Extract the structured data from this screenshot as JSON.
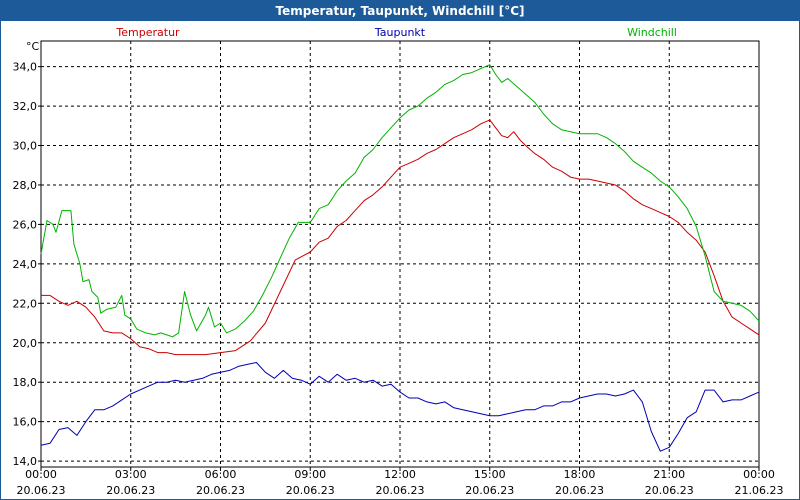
{
  "window": {
    "title": "Temperatur, Taupunkt, Windchill [°C]"
  },
  "chart_data": {
    "type": "line",
    "title": "Temperatur, Taupunkt, Windchill [°C]",
    "ylabel": "°C",
    "xlabel": "",
    "ylim": [
      13.7,
      35.3
    ],
    "xlim": [
      0,
      24
    ],
    "grid": true,
    "yticks": [
      14,
      16,
      18,
      20,
      22,
      24,
      26,
      28,
      30,
      32,
      34
    ],
    "ytick_labels": [
      "14,0",
      "16,0",
      "18,0",
      "20,0",
      "22,0",
      "24,0",
      "26,0",
      "28,0",
      "30,0",
      "32,0",
      "34,0"
    ],
    "xticks": [
      {
        "x": 0,
        "time": "00:00",
        "date": "20.06.23"
      },
      {
        "x": 3,
        "time": "03:00",
        "date": "20.06.23"
      },
      {
        "x": 6,
        "time": "06:00",
        "date": "20.06.23"
      },
      {
        "x": 9,
        "time": "09:00",
        "date": "20.06.23"
      },
      {
        "x": 12,
        "time": "12:00",
        "date": "20.06.23"
      },
      {
        "x": 15,
        "time": "15:00",
        "date": "20.06.23"
      },
      {
        "x": 18,
        "time": "18:00",
        "date": "20.06.23"
      },
      {
        "x": 21,
        "time": "21:00",
        "date": "20.06.23"
      },
      {
        "x": 24,
        "time": "00:00",
        "date": "21.06.23"
      }
    ],
    "series": [
      {
        "name": "Temperatur",
        "color": "#cc0000",
        "points": [
          [
            0,
            22.4
          ],
          [
            0.3,
            22.4
          ],
          [
            0.6,
            22.1
          ],
          [
            0.9,
            21.9
          ],
          [
            1.2,
            22.1
          ],
          [
            1.5,
            21.8
          ],
          [
            1.8,
            21.3
          ],
          [
            2.1,
            20.6
          ],
          [
            2.4,
            20.5
          ],
          [
            2.7,
            20.5
          ],
          [
            3.0,
            20.2
          ],
          [
            3.3,
            19.8
          ],
          [
            3.6,
            19.7
          ],
          [
            3.9,
            19.5
          ],
          [
            4.2,
            19.5
          ],
          [
            4.5,
            19.4
          ],
          [
            5.0,
            19.4
          ],
          [
            5.5,
            19.4
          ],
          [
            6.0,
            19.5
          ],
          [
            6.5,
            19.6
          ],
          [
            7.0,
            20.1
          ],
          [
            7.5,
            21.0
          ],
          [
            8.0,
            22.6
          ],
          [
            8.5,
            24.2
          ],
          [
            9.0,
            24.6
          ],
          [
            9.3,
            25.1
          ],
          [
            9.6,
            25.3
          ],
          [
            9.9,
            25.9
          ],
          [
            10.2,
            26.2
          ],
          [
            10.5,
            26.7
          ],
          [
            10.8,
            27.2
          ],
          [
            11.1,
            27.5
          ],
          [
            11.4,
            27.9
          ],
          [
            11.7,
            28.4
          ],
          [
            12.0,
            28.9
          ],
          [
            12.3,
            29.1
          ],
          [
            12.6,
            29.3
          ],
          [
            12.9,
            29.6
          ],
          [
            13.2,
            29.8
          ],
          [
            13.5,
            30.1
          ],
          [
            13.8,
            30.4
          ],
          [
            14.1,
            30.6
          ],
          [
            14.4,
            30.8
          ],
          [
            14.7,
            31.1
          ],
          [
            15.0,
            31.3
          ],
          [
            15.2,
            30.9
          ],
          [
            15.4,
            30.5
          ],
          [
            15.6,
            30.4
          ],
          [
            15.8,
            30.7
          ],
          [
            16.0,
            30.3
          ],
          [
            16.2,
            30.0
          ],
          [
            16.5,
            29.6
          ],
          [
            16.8,
            29.3
          ],
          [
            17.1,
            28.9
          ],
          [
            17.4,
            28.7
          ],
          [
            17.7,
            28.4
          ],
          [
            18.0,
            28.3
          ],
          [
            18.3,
            28.3
          ],
          [
            18.6,
            28.2
          ],
          [
            18.9,
            28.1
          ],
          [
            19.2,
            28.0
          ],
          [
            19.5,
            27.7
          ],
          [
            19.8,
            27.3
          ],
          [
            20.1,
            27.0
          ],
          [
            20.4,
            26.8
          ],
          [
            20.7,
            26.6
          ],
          [
            21.0,
            26.4
          ],
          [
            21.3,
            26.1
          ],
          [
            21.6,
            25.6
          ],
          [
            21.9,
            25.2
          ],
          [
            22.2,
            24.6
          ],
          [
            22.5,
            23.4
          ],
          [
            22.8,
            22.1
          ],
          [
            23.1,
            21.3
          ],
          [
            23.4,
            21.0
          ],
          [
            23.7,
            20.7
          ],
          [
            24.0,
            20.4
          ]
        ]
      },
      {
        "name": "Taupunkt",
        "color": "#0000b4",
        "points": [
          [
            0,
            14.8
          ],
          [
            0.3,
            14.9
          ],
          [
            0.6,
            15.6
          ],
          [
            0.9,
            15.7
          ],
          [
            1.2,
            15.3
          ],
          [
            1.5,
            16.0
          ],
          [
            1.8,
            16.6
          ],
          [
            2.1,
            16.6
          ],
          [
            2.4,
            16.8
          ],
          [
            2.7,
            17.1
          ],
          [
            3.0,
            17.4
          ],
          [
            3.3,
            17.6
          ],
          [
            3.6,
            17.8
          ],
          [
            3.9,
            18.0
          ],
          [
            4.2,
            18.0
          ],
          [
            4.5,
            18.1
          ],
          [
            4.8,
            18.0
          ],
          [
            5.1,
            18.1
          ],
          [
            5.4,
            18.2
          ],
          [
            5.7,
            18.4
          ],
          [
            6.0,
            18.5
          ],
          [
            6.3,
            18.6
          ],
          [
            6.6,
            18.8
          ],
          [
            6.9,
            18.9
          ],
          [
            7.2,
            19.0
          ],
          [
            7.5,
            18.5
          ],
          [
            7.8,
            18.2
          ],
          [
            8.1,
            18.6
          ],
          [
            8.4,
            18.2
          ],
          [
            8.7,
            18.1
          ],
          [
            9.0,
            17.9
          ],
          [
            9.3,
            18.3
          ],
          [
            9.6,
            18.0
          ],
          [
            9.9,
            18.4
          ],
          [
            10.2,
            18.1
          ],
          [
            10.5,
            18.2
          ],
          [
            10.8,
            18.0
          ],
          [
            11.1,
            18.1
          ],
          [
            11.4,
            17.8
          ],
          [
            11.7,
            17.9
          ],
          [
            12.0,
            17.5
          ],
          [
            12.3,
            17.2
          ],
          [
            12.6,
            17.2
          ],
          [
            12.9,
            17.0
          ],
          [
            13.2,
            16.9
          ],
          [
            13.5,
            17.0
          ],
          [
            13.8,
            16.7
          ],
          [
            14.1,
            16.6
          ],
          [
            14.4,
            16.5
          ],
          [
            14.7,
            16.4
          ],
          [
            15.0,
            16.3
          ],
          [
            15.3,
            16.3
          ],
          [
            15.6,
            16.4
          ],
          [
            15.9,
            16.5
          ],
          [
            16.2,
            16.6
          ],
          [
            16.5,
            16.6
          ],
          [
            16.8,
            16.8
          ],
          [
            17.1,
            16.8
          ],
          [
            17.4,
            17.0
          ],
          [
            17.7,
            17.0
          ],
          [
            18.0,
            17.2
          ],
          [
            18.3,
            17.3
          ],
          [
            18.6,
            17.4
          ],
          [
            18.9,
            17.4
          ],
          [
            19.2,
            17.3
          ],
          [
            19.5,
            17.4
          ],
          [
            19.8,
            17.6
          ],
          [
            20.1,
            17.0
          ],
          [
            20.4,
            15.5
          ],
          [
            20.7,
            14.5
          ],
          [
            21.0,
            14.7
          ],
          [
            21.3,
            15.4
          ],
          [
            21.6,
            16.2
          ],
          [
            21.9,
            16.5
          ],
          [
            22.2,
            17.6
          ],
          [
            22.5,
            17.6
          ],
          [
            22.8,
            17.0
          ],
          [
            23.1,
            17.1
          ],
          [
            23.4,
            17.1
          ],
          [
            23.7,
            17.3
          ],
          [
            24.0,
            17.5
          ]
        ]
      },
      {
        "name": "Windchill",
        "color": "#00b400",
        "points": [
          [
            0,
            24.5
          ],
          [
            0.2,
            26.2
          ],
          [
            0.4,
            26.0
          ],
          [
            0.5,
            25.6
          ],
          [
            0.7,
            26.7
          ],
          [
            1.0,
            26.7
          ],
          [
            1.1,
            25.0
          ],
          [
            1.3,
            24.0
          ],
          [
            1.4,
            23.1
          ],
          [
            1.6,
            23.2
          ],
          [
            1.7,
            22.6
          ],
          [
            1.9,
            22.3
          ],
          [
            2.0,
            21.5
          ],
          [
            2.2,
            21.7
          ],
          [
            2.5,
            21.8
          ],
          [
            2.7,
            22.4
          ],
          [
            2.8,
            21.4
          ],
          [
            3.0,
            21.2
          ],
          [
            3.2,
            20.7
          ],
          [
            3.5,
            20.5
          ],
          [
            3.8,
            20.4
          ],
          [
            4.0,
            20.5
          ],
          [
            4.2,
            20.4
          ],
          [
            4.4,
            20.3
          ],
          [
            4.6,
            20.5
          ],
          [
            4.8,
            22.6
          ],
          [
            5.0,
            21.4
          ],
          [
            5.2,
            20.6
          ],
          [
            5.5,
            21.4
          ],
          [
            5.6,
            21.8
          ],
          [
            5.8,
            20.8
          ],
          [
            6.0,
            21.0
          ],
          [
            6.2,
            20.5
          ],
          [
            6.5,
            20.7
          ],
          [
            6.8,
            21.1
          ],
          [
            7.1,
            21.6
          ],
          [
            7.4,
            22.4
          ],
          [
            7.7,
            23.3
          ],
          [
            8.0,
            24.3
          ],
          [
            8.3,
            25.3
          ],
          [
            8.6,
            26.1
          ],
          [
            9.0,
            26.1
          ],
          [
            9.3,
            26.8
          ],
          [
            9.6,
            27.0
          ],
          [
            9.9,
            27.7
          ],
          [
            10.2,
            28.2
          ],
          [
            10.5,
            28.6
          ],
          [
            10.8,
            29.4
          ],
          [
            11.1,
            29.8
          ],
          [
            11.4,
            30.4
          ],
          [
            11.7,
            30.9
          ],
          [
            12.0,
            31.4
          ],
          [
            12.3,
            31.8
          ],
          [
            12.6,
            32.0
          ],
          [
            12.9,
            32.4
          ],
          [
            13.2,
            32.7
          ],
          [
            13.5,
            33.1
          ],
          [
            13.8,
            33.3
          ],
          [
            14.1,
            33.6
          ],
          [
            14.4,
            33.7
          ],
          [
            14.7,
            33.9
          ],
          [
            15.0,
            34.1
          ],
          [
            15.2,
            33.6
          ],
          [
            15.4,
            33.2
          ],
          [
            15.6,
            33.4
          ],
          [
            15.9,
            33.0
          ],
          [
            16.2,
            32.6
          ],
          [
            16.5,
            32.2
          ],
          [
            16.8,
            31.6
          ],
          [
            17.1,
            31.1
          ],
          [
            17.4,
            30.8
          ],
          [
            17.7,
            30.7
          ],
          [
            18.0,
            30.6
          ],
          [
            18.3,
            30.6
          ],
          [
            18.6,
            30.6
          ],
          [
            18.9,
            30.4
          ],
          [
            19.2,
            30.1
          ],
          [
            19.5,
            29.7
          ],
          [
            19.8,
            29.2
          ],
          [
            20.1,
            28.9
          ],
          [
            20.4,
            28.6
          ],
          [
            20.7,
            28.2
          ],
          [
            21.0,
            27.9
          ],
          [
            21.3,
            27.4
          ],
          [
            21.6,
            26.8
          ],
          [
            21.9,
            25.9
          ],
          [
            22.2,
            24.4
          ],
          [
            22.5,
            22.6
          ],
          [
            22.8,
            22.1
          ],
          [
            23.1,
            22.0
          ],
          [
            23.4,
            21.9
          ],
          [
            23.7,
            21.6
          ],
          [
            24.0,
            21.1
          ]
        ]
      }
    ]
  }
}
